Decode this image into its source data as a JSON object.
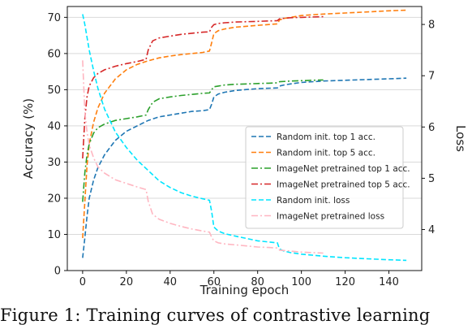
{
  "caption": "Figure 1:  Training curves of contrastive learning",
  "chart_data": {
    "type": "line",
    "title": "",
    "xlabel": "Training epoch",
    "ylabel": "Accuracy (%)",
    "y2label": "Loss",
    "xlim": [
      -7,
      155
    ],
    "ylim": [
      0,
      73
    ],
    "y2lim": [
      3.2,
      8.35
    ],
    "xticks": [
      0,
      20,
      40,
      60,
      80,
      100,
      120,
      140
    ],
    "yticks": [
      0,
      10,
      20,
      30,
      40,
      50,
      60,
      70
    ],
    "y2ticks": [
      4,
      5,
      6,
      7,
      8
    ],
    "grid": "horizontal",
    "legend_position": "center-right",
    "series": [
      {
        "name": "Random init. top 1 acc.",
        "axis": "left",
        "color": "#1f77b4",
        "dash": "dashed",
        "x": [
          0,
          1,
          2,
          3,
          5,
          7,
          10,
          15,
          20,
          25,
          30,
          35,
          40,
          45,
          50,
          55,
          58,
          59,
          60,
          62,
          65,
          70,
          80,
          89,
          90,
          92,
          95,
          100,
          110,
          120,
          130,
          140,
          148
        ],
        "y": [
          3.5,
          9,
          15,
          20,
          25,
          28.5,
          32,
          36,
          38.5,
          40,
          41.5,
          42.5,
          43,
          43.5,
          44,
          44.2,
          44.5,
          46,
          48,
          48.8,
          49.3,
          49.8,
          50.3,
          50.5,
          51,
          51.3,
          51.6,
          52,
          52.4,
          52.6,
          52.8,
          53,
          53.2
        ]
      },
      {
        "name": "Random init. top 5 acc.",
        "axis": "left",
        "color": "#ff7f0e",
        "dash": "dashed",
        "x": [
          0,
          1,
          2,
          3,
          5,
          7,
          10,
          15,
          20,
          25,
          30,
          35,
          40,
          45,
          50,
          55,
          58,
          59,
          60,
          62,
          65,
          70,
          80,
          89,
          90,
          92,
          95,
          100,
          110,
          120,
          130,
          140,
          148
        ],
        "y": [
          9,
          19,
          29,
          35,
          41,
          45,
          49,
          53,
          55.5,
          57,
          58,
          58.8,
          59.3,
          59.7,
          60,
          60.3,
          60.7,
          63,
          65.5,
          66.3,
          66.8,
          67.3,
          67.8,
          68.2,
          69.3,
          69.7,
          70,
          70.5,
          70.9,
          71.2,
          71.5,
          71.8,
          72
        ]
      },
      {
        "name": "ImageNet pretrained top 1 acc.",
        "axis": "left",
        "color": "#2ca02c",
        "dash": "dashdot",
        "x": [
          0,
          1,
          2,
          3,
          5,
          7,
          10,
          15,
          20,
          25,
          29,
          30,
          32,
          35,
          40,
          45,
          50,
          55,
          58,
          59,
          60,
          62,
          65,
          70,
          75,
          80,
          85,
          89,
          90,
          95,
          100,
          105,
          110
        ],
        "y": [
          19,
          27,
          32,
          35,
          38,
          39.5,
          40.5,
          41.5,
          42,
          42.5,
          43,
          44.5,
          46.5,
          47.5,
          48,
          48.4,
          48.7,
          49,
          49.1,
          50,
          50.8,
          51,
          51.3,
          51.5,
          51.6,
          51.7,
          51.8,
          51.9,
          52.2,
          52.4,
          52.5,
          52.6,
          52.7
        ]
      },
      {
        "name": "ImageNet pretrained top 5 acc.",
        "axis": "left",
        "color": "#d62728",
        "dash": "dashdot",
        "x": [
          0,
          1,
          2,
          3,
          5,
          7,
          10,
          15,
          20,
          25,
          29,
          30,
          32,
          35,
          40,
          45,
          50,
          55,
          58,
          59,
          60,
          62,
          65,
          70,
          75,
          80,
          85,
          89,
          90,
          95,
          100,
          105,
          110
        ],
        "y": [
          31,
          42,
          48,
          51,
          53.3,
          54.5,
          55.5,
          56.5,
          57.2,
          57.8,
          58.4,
          61,
          63.5,
          64.3,
          64.8,
          65.3,
          65.6,
          65.9,
          66,
          67.3,
          68,
          68.3,
          68.5,
          68.7,
          68.8,
          68.9,
          69,
          69.1,
          69.6,
          69.9,
          70,
          70.1,
          70.2
        ]
      },
      {
        "name": "Random init. loss",
        "axis": "right",
        "color": "#00e5ff",
        "dash": "dashed",
        "x": [
          0,
          1,
          2,
          3,
          5,
          7,
          10,
          15,
          20,
          25,
          30,
          35,
          40,
          45,
          50,
          55,
          58,
          59,
          60,
          62,
          65,
          70,
          80,
          89,
          90,
          92,
          95,
          100,
          110,
          120,
          130,
          140,
          148
        ],
        "y": [
          8.2,
          8.0,
          7.75,
          7.5,
          7.1,
          6.75,
          6.35,
          5.9,
          5.6,
          5.35,
          5.15,
          4.95,
          4.82,
          4.72,
          4.65,
          4.6,
          4.57,
          4.35,
          4.05,
          3.97,
          3.92,
          3.87,
          3.78,
          3.74,
          3.62,
          3.58,
          3.55,
          3.52,
          3.48,
          3.45,
          3.43,
          3.41,
          3.4
        ]
      },
      {
        "name": "ImageNet pretrained loss",
        "axis": "right",
        "color": "#ffb6c1",
        "dash": "dashdot",
        "x": [
          0,
          1,
          2,
          3,
          5,
          7,
          10,
          15,
          20,
          25,
          29,
          30,
          32,
          35,
          40,
          45,
          50,
          55,
          58,
          59,
          60,
          62,
          65,
          70,
          75,
          80,
          85,
          89,
          90,
          95,
          100,
          105,
          110
        ],
        "y": [
          7.3,
          6.3,
          5.9,
          5.65,
          5.4,
          5.22,
          5.1,
          4.97,
          4.9,
          4.83,
          4.78,
          4.55,
          4.3,
          4.2,
          4.12,
          4.06,
          4.01,
          3.97,
          3.95,
          3.85,
          3.78,
          3.74,
          3.72,
          3.7,
          3.68,
          3.66,
          3.65,
          3.64,
          3.6,
          3.58,
          3.56,
          3.55,
          3.54
        ]
      }
    ]
  }
}
